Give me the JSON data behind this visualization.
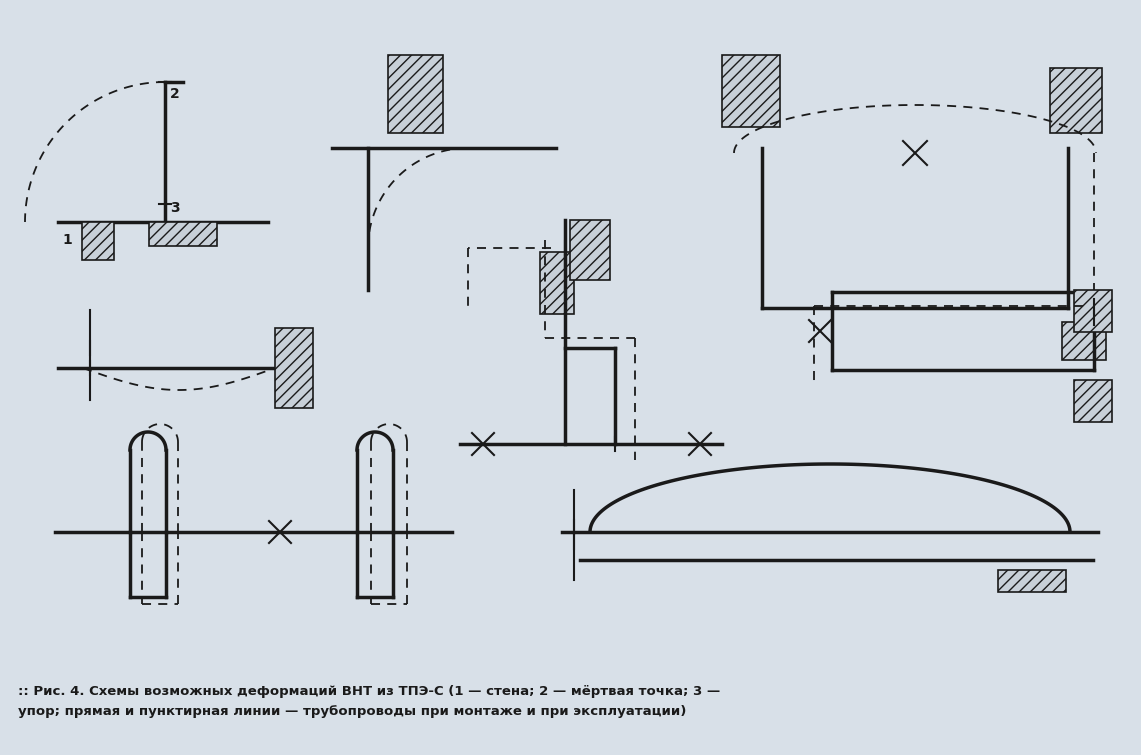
{
  "bg_color": "#d8e0e8",
  "line_color": "#1a1a1a",
  "caption": ":: Рис. 4. Схемы возможных деформаций ВНТ из ТПЭ-С (1 — стена; 2 — мёртвая точка; 3 —",
  "caption2": "упор; прямая и пунктирная линии — трубопроводы при монтаже и при эксплуатации)"
}
